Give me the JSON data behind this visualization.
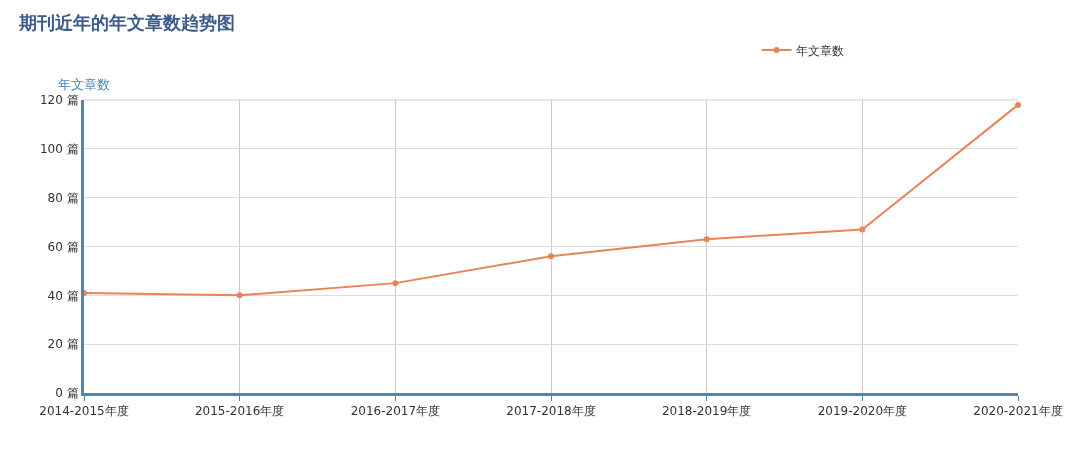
{
  "chart_data": {
    "type": "line",
    "title": "期刊近年的年文章数趋势图",
    "ylabel": "年文章数",
    "categories": [
      "2014-2015年度",
      "2015-2016年度",
      "2016-2017年度",
      "2017-2018年度",
      "2018-2019年度",
      "2019-2020年度",
      "2020-2021年度"
    ],
    "series": [
      {
        "name": "年文章数",
        "color": "#e8845a",
        "values": [
          41,
          40,
          45,
          56,
          63,
          67,
          118
        ]
      }
    ],
    "ylim": [
      0,
      120
    ],
    "yticks": [
      {
        "value": 0,
        "label": "0 篇"
      },
      {
        "value": 20,
        "label": "20 篇"
      },
      {
        "value": 40,
        "label": "40 篇"
      },
      {
        "value": 60,
        "label": "60 篇"
      },
      {
        "value": 80,
        "label": "80 篇"
      },
      {
        "value": 100,
        "label": "100 篇"
      },
      {
        "value": 120,
        "label": "120 篇"
      }
    ],
    "grid": true,
    "legend": "top right",
    "marker": "circle",
    "line_style": "solid"
  }
}
